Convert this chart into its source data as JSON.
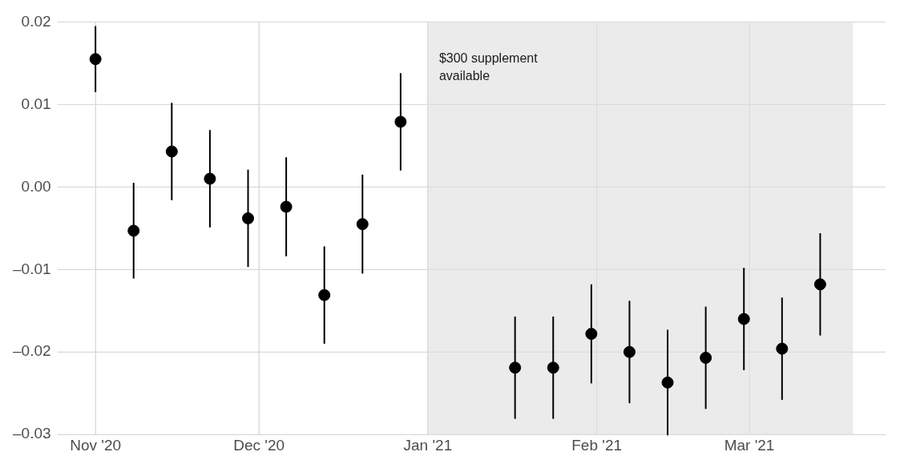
{
  "chart_data": {
    "type": "scatter",
    "x": [
      "2020-11-01",
      "2020-11-08",
      "2020-11-15",
      "2020-11-22",
      "2020-11-29",
      "2020-12-06",
      "2020-12-13",
      "2020-12-20",
      "2020-12-27",
      "2021-01-17",
      "2021-01-24",
      "2021-01-31",
      "2021-02-07",
      "2021-02-14",
      "2021-02-21",
      "2021-02-28",
      "2021-03-07",
      "2021-03-14"
    ],
    "series": [
      {
        "color": "#000000",
        "values": [
          0.0155,
          -0.0053,
          0.0043,
          0.001,
          -0.0038,
          -0.0024,
          -0.0131,
          -0.0045,
          0.0079,
          -0.0219,
          -0.0219,
          -0.0178,
          -0.02,
          -0.0237,
          -0.0207,
          -0.016,
          -0.0196,
          -0.0118
        ],
        "errors": [
          0.004,
          0.0058,
          0.0059,
          0.0059,
          0.0059,
          0.006,
          0.0059,
          0.006,
          0.0059,
          0.0062,
          0.0062,
          0.006,
          0.0062,
          0.0064,
          0.0062,
          0.0062,
          0.0062,
          0.0062
        ]
      }
    ],
    "xlim": [
      "2020-10-25",
      "2021-03-26"
    ],
    "xticks": [
      {
        "value": "2020-11-01",
        "label": "Nov '20"
      },
      {
        "value": "2020-12-01",
        "label": "Dec '20"
      },
      {
        "value": "2021-01-01",
        "label": "Jan '21"
      },
      {
        "value": "2021-02-01",
        "label": "Feb '21"
      },
      {
        "value": "2021-03-01",
        "label": "Mar '21"
      }
    ],
    "ylim": [
      -0.03,
      0.02
    ],
    "yticks": [
      {
        "value": -0.03,
        "label": "–0.03"
      },
      {
        "value": -0.02,
        "label": "–0.02"
      },
      {
        "value": -0.01,
        "label": "–0.01"
      },
      {
        "value": 0,
        "label": "0.00"
      },
      {
        "value": 0.01,
        "label": "0.01"
      },
      {
        "value": 0.02,
        "label": "0.02"
      }
    ],
    "bands": [
      {
        "axis": "x",
        "from": "2021-01-01",
        "to": "2021-03-20",
        "label": "$300 supplement available",
        "color": "#ebebeb"
      }
    ],
    "grid": true,
    "legend": false,
    "marker": "circle"
  }
}
